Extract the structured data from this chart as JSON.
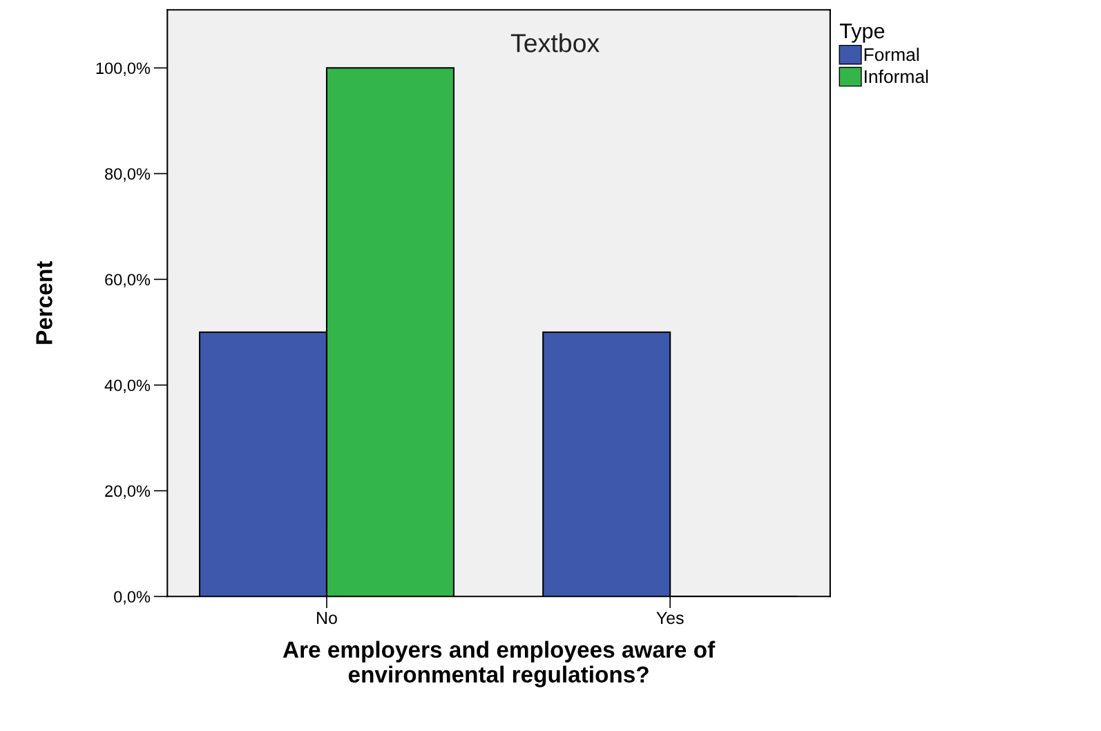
{
  "chart_data": {
    "type": "bar",
    "xlabel": "Are employers and employees aware of\nenvironmental regulations?",
    "ylabel": "Percent",
    "categories": [
      "No",
      "Yes"
    ],
    "series": [
      {
        "name": "Formal",
        "color": "#3e58ac",
        "values": [
          50,
          50
        ]
      },
      {
        "name": "Informal",
        "color": "#33b54a",
        "values": [
          100,
          0
        ]
      }
    ],
    "ylim": [
      0,
      111
    ],
    "yticks": [
      {
        "value": 0,
        "label": "0,0%"
      },
      {
        "value": 20,
        "label": "20,0%"
      },
      {
        "value": 40,
        "label": "40,0%"
      },
      {
        "value": 60,
        "label": "60,0%"
      },
      {
        "value": 80,
        "label": "80,0%"
      },
      {
        "value": 100,
        "label": "100,0%"
      }
    ],
    "legend": "right",
    "legend_title": "Type",
    "grid": false,
    "annotations": [
      "Textbox"
    ]
  }
}
